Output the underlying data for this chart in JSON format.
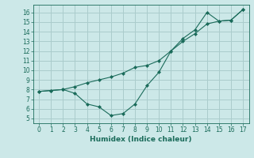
{
  "xlabel": "Humidex (Indice chaleur)",
  "background_color": "#cce8e8",
  "line_color": "#1a6b5a",
  "grid_color": "#aacccc",
  "series1_x": [
    0,
    1,
    2,
    3,
    4,
    5,
    6,
    7,
    8,
    9,
    10,
    11,
    12,
    13,
    14,
    15,
    16,
    17
  ],
  "series1_y": [
    7.8,
    7.9,
    8.0,
    8.3,
    8.7,
    9.0,
    9.3,
    9.7,
    10.3,
    10.5,
    11.0,
    12.0,
    13.0,
    13.8,
    14.8,
    15.1,
    15.2,
    16.3
  ],
  "series2_x": [
    0,
    1,
    2,
    3,
    4,
    5,
    6,
    7,
    8,
    9,
    10,
    11,
    12,
    13,
    14,
    15,
    16,
    17
  ],
  "series2_y": [
    7.8,
    7.9,
    8.0,
    7.6,
    6.5,
    6.2,
    5.3,
    5.5,
    6.5,
    8.4,
    9.8,
    12.0,
    13.3,
    14.2,
    16.0,
    15.1,
    15.2,
    16.3
  ],
  "ylim": [
    4.5,
    16.8
  ],
  "xlim": [
    -0.5,
    17.5
  ],
  "yticks": [
    5,
    6,
    7,
    8,
    9,
    10,
    11,
    12,
    13,
    14,
    15,
    16
  ],
  "xticks": [
    0,
    1,
    2,
    3,
    4,
    5,
    6,
    7,
    8,
    9,
    10,
    11,
    12,
    13,
    14,
    15,
    16,
    17
  ]
}
